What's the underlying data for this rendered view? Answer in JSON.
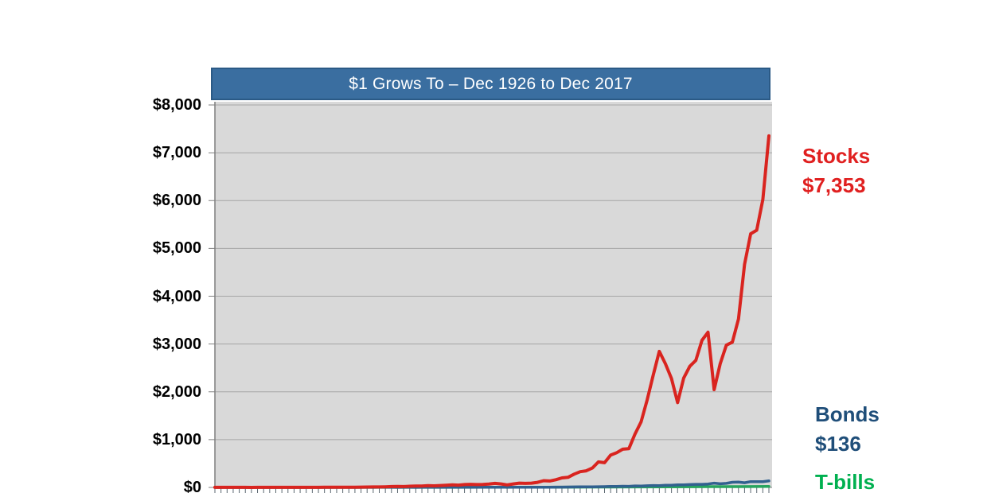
{
  "title_bar": {
    "text": "$1 Grows To – Dec 1926 to Dec 2017",
    "bg": "#3A6EA0",
    "border": "#2B5A86",
    "text_color": "#FFFFFF"
  },
  "right_labels": {
    "stocks": {
      "name": "Stocks",
      "value": "$7,353",
      "color": "#E02020"
    },
    "bonds": {
      "name": "Bonds",
      "value": "$136",
      "color": "#1F4E79"
    },
    "tbills": {
      "name": "T-bills",
      "color": "#00B050"
    }
  },
  "chart_data": {
    "type": "line",
    "title": "$1 Grows To – Dec 1926 to Dec 2017",
    "xlabel": "",
    "ylabel": "",
    "x_range": [
      1926,
      2017
    ],
    "ylim": [
      0,
      8000
    ],
    "y_tick_step": 1000,
    "y_tick_labels": [
      "$0",
      "$1,000",
      "$2,000",
      "$3,000",
      "$4,000",
      "$5,000",
      "$6,000",
      "$7,000",
      "$8,000"
    ],
    "grid": true,
    "legend_position": "right",
    "plot_bg": "#D9D9D9",
    "grid_color": "#A6A6A6",
    "axis_color": "#7F7F7F",
    "x_tick_color": "#5B6770",
    "series": [
      {
        "name": "T-bills",
        "color": "#27A45E",
        "line_width": 3.5,
        "end_value": 21,
        "points": [
          [
            1926,
            1
          ],
          [
            1935,
            1.2
          ],
          [
            1945,
            1.25
          ],
          [
            1955,
            1.4
          ],
          [
            1965,
            1.8
          ],
          [
            1975,
            3.0
          ],
          [
            1980,
            4.2
          ],
          [
            1985,
            6.2
          ],
          [
            1990,
            8.4
          ],
          [
            1995,
            10.4
          ],
          [
            2000,
            13.4
          ],
          [
            2005,
            15.4
          ],
          [
            2008,
            17.1
          ],
          [
            2012,
            17.3
          ],
          [
            2017,
            21
          ]
        ]
      },
      {
        "name": "Bonds",
        "color": "#31618F",
        "line_width": 3.5,
        "end_value": 136,
        "points": [
          [
            1926,
            1
          ],
          [
            1927,
            1.09
          ],
          [
            1928,
            1.09
          ],
          [
            1929,
            1.13
          ],
          [
            1930,
            1.18
          ],
          [
            1931,
            1.12
          ],
          [
            1932,
            1.31
          ],
          [
            1933,
            1.31
          ],
          [
            1934,
            1.44
          ],
          [
            1935,
            1.51
          ],
          [
            1936,
            1.62
          ],
          [
            1937,
            1.63
          ],
          [
            1938,
            1.72
          ],
          [
            1939,
            1.82
          ],
          [
            1940,
            1.93
          ],
          [
            1941,
            1.95
          ],
          [
            1942,
            2.01
          ],
          [
            1943,
            2.05
          ],
          [
            1944,
            2.11
          ],
          [
            1945,
            2.34
          ],
          [
            1946,
            2.31
          ],
          [
            1947,
            2.25
          ],
          [
            1948,
            2.33
          ],
          [
            1949,
            2.48
          ],
          [
            1950,
            2.48
          ],
          [
            1951,
            2.38
          ],
          [
            1952,
            2.41
          ],
          [
            1953,
            2.5
          ],
          [
            1954,
            2.68
          ],
          [
            1955,
            2.64
          ],
          [
            1956,
            2.49
          ],
          [
            1957,
            2.68
          ],
          [
            1958,
            2.51
          ],
          [
            1959,
            2.46
          ],
          [
            1960,
            2.8
          ],
          [
            1961,
            2.82
          ],
          [
            1962,
            3.01
          ],
          [
            1963,
            3.04
          ],
          [
            1964,
            3.15
          ],
          [
            1965,
            3.16
          ],
          [
            1966,
            3.27
          ],
          [
            1967,
            2.97
          ],
          [
            1968,
            2.96
          ],
          [
            1969,
            2.81
          ],
          [
            1970,
            3.15
          ],
          [
            1971,
            3.56
          ],
          [
            1972,
            3.76
          ],
          [
            1973,
            3.72
          ],
          [
            1974,
            3.88
          ],
          [
            1975,
            4.24
          ],
          [
            1976,
            4.95
          ],
          [
            1977,
            4.91
          ],
          [
            1978,
            4.86
          ],
          [
            1979,
            4.8
          ],
          [
            1980,
            4.61
          ],
          [
            1981,
            4.7
          ],
          [
            1982,
            6.6
          ],
          [
            1983,
            6.64
          ],
          [
            1984,
            7.67
          ],
          [
            1985,
            10.1
          ],
          [
            1986,
            12.5
          ],
          [
            1987,
            12.2
          ],
          [
            1988,
            13.4
          ],
          [
            1989,
            15.8
          ],
          [
            1990,
            16.7
          ],
          [
            1991,
            20.0
          ],
          [
            1992,
            21.6
          ],
          [
            1993,
            25.5
          ],
          [
            1994,
            23.6
          ],
          [
            1995,
            31.0
          ],
          [
            1996,
            30.7
          ],
          [
            1997,
            35.6
          ],
          [
            1998,
            40.2
          ],
          [
            1999,
            36.6
          ],
          [
            2000,
            44.4
          ],
          [
            2001,
            46.1
          ],
          [
            2002,
            53.9
          ],
          [
            2003,
            54.7
          ],
          [
            2004,
            59.4
          ],
          [
            2005,
            64.5
          ],
          [
            2006,
            65.3
          ],
          [
            2007,
            71.7
          ],
          [
            2008,
            90.0
          ],
          [
            2009,
            76.8
          ],
          [
            2010,
            84.3
          ],
          [
            2011,
            108
          ],
          [
            2012,
            111
          ],
          [
            2013,
            97.7
          ],
          [
            2014,
            122
          ],
          [
            2015,
            120
          ],
          [
            2016,
            122
          ],
          [
            2017,
            136
          ]
        ]
      },
      {
        "name": "Stocks",
        "color": "#D9241F",
        "line_width": 4,
        "end_value": 7353,
        "points": [
          [
            1926,
            1
          ],
          [
            1927,
            1.53
          ],
          [
            1928,
            2.2
          ],
          [
            1929,
            2.02
          ],
          [
            1930,
            1.52
          ],
          [
            1931,
            0.86
          ],
          [
            1932,
            0.79
          ],
          [
            1933,
            1.21
          ],
          [
            1934,
            1.2
          ],
          [
            1935,
            1.77
          ],
          [
            1936,
            2.37
          ],
          [
            1937,
            1.54
          ],
          [
            1938,
            2.02
          ],
          [
            1939,
            2.01
          ],
          [
            1940,
            1.81
          ],
          [
            1941,
            1.6
          ],
          [
            1942,
            1.93
          ],
          [
            1943,
            2.43
          ],
          [
            1944,
            2.91
          ],
          [
            1945,
            3.96
          ],
          [
            1946,
            3.64
          ],
          [
            1947,
            3.85
          ],
          [
            1948,
            4.06
          ],
          [
            1949,
            4.83
          ],
          [
            1950,
            6.36
          ],
          [
            1951,
            7.88
          ],
          [
            1952,
            9.33
          ],
          [
            1953,
            9.24
          ],
          [
            1954,
            14.1
          ],
          [
            1955,
            18.6
          ],
          [
            1956,
            19.8
          ],
          [
            1957,
            17.7
          ],
          [
            1958,
            25.3
          ],
          [
            1959,
            28.3
          ],
          [
            1960,
            28.5
          ],
          [
            1961,
            36.1
          ],
          [
            1962,
            33.0
          ],
          [
            1963,
            40.5
          ],
          [
            1964,
            47.1
          ],
          [
            1965,
            53.0
          ],
          [
            1966,
            47.7
          ],
          [
            1967,
            59.1
          ],
          [
            1968,
            65.6
          ],
          [
            1969,
            60.1
          ],
          [
            1970,
            62.5
          ],
          [
            1971,
            71.4
          ],
          [
            1972,
            85.0
          ],
          [
            1973,
            72.5
          ],
          [
            1974,
            53.3
          ],
          [
            1975,
            73.1
          ],
          [
            1976,
            90.6
          ],
          [
            1977,
            84.1
          ],
          [
            1978,
            89.6
          ],
          [
            1979,
            106
          ],
          [
            1980,
            141
          ],
          [
            1981,
            134
          ],
          [
            1982,
            162
          ],
          [
            1983,
            199
          ],
          [
            1984,
            211
          ],
          [
            1985,
            278
          ],
          [
            1986,
            330
          ],
          [
            1987,
            348
          ],
          [
            1988,
            406
          ],
          [
            1989,
            534
          ],
          [
            1990,
            518
          ],
          [
            1991,
            676
          ],
          [
            1992,
            727
          ],
          [
            1993,
            800
          ],
          [
            1994,
            811
          ],
          [
            1995,
            1114
          ],
          [
            1996,
            1371
          ],
          [
            1997,
            1828
          ],
          [
            1998,
            2351
          ],
          [
            1999,
            2846
          ],
          [
            2000,
            2587
          ],
          [
            2001,
            2279
          ],
          [
            2002,
            1775
          ],
          [
            2003,
            2285
          ],
          [
            2004,
            2533
          ],
          [
            2005,
            2658
          ],
          [
            2006,
            3077
          ],
          [
            2007,
            3246
          ],
          [
            2008,
            2045
          ],
          [
            2009,
            2587
          ],
          [
            2010,
            2976
          ],
          [
            2011,
            3039
          ],
          [
            2012,
            3525
          ],
          [
            2013,
            4666
          ],
          [
            2014,
            5306
          ],
          [
            2015,
            5380
          ],
          [
            2016,
            6024
          ],
          [
            2017,
            7353
          ]
        ]
      }
    ]
  }
}
